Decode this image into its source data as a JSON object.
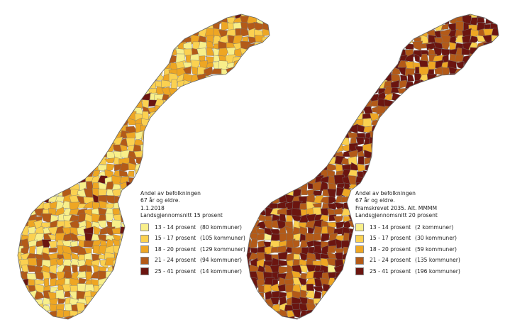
{
  "maps": [
    {
      "title_lines": [
        "Andel av befolkningen",
        "67 år og eldre.",
        "1.1.2018",
        "Landsgjennomsnitt 15 prosent"
      ],
      "classes": [
        {
          "label": "13 - 14 prosent",
          "count": "(80 kommuner)",
          "color": "#f8ef8a"
        },
        {
          "label": "15 - 17 prosent",
          "count": "(105 kommuner)",
          "color": "#fbd150"
        },
        {
          "label": "18 - 20 prosent",
          "count": "(129 kommuner)",
          "color": "#eea623"
        },
        {
          "label": "21 - 24 prosent",
          "count": "(94 kommuner)",
          "color": "#b35a18"
        },
        {
          "label": "25 - 41 prosent",
          "count": "(14 kommuner)",
          "color": "#6b1510"
        }
      ]
    },
    {
      "title_lines": [
        "Andel av befolkningen",
        "67 år og eldre.",
        "Framskrevet 2035. Alt. MMMM",
        "Landsgjennomsnitt 20 prosent"
      ],
      "classes": [
        {
          "label": "13 - 14 prosent",
          "count": "(2 kommuner)",
          "color": "#f8ef8a"
        },
        {
          "label": "15 - 17 prosent",
          "count": "(30 kommuner)",
          "color": "#fbd150"
        },
        {
          "label": "18 - 20 prosent",
          "count": "(59 kommuner)",
          "color": "#eea623"
        },
        {
          "label": "21 - 24 prosent",
          "count": "(135 kommuner)",
          "color": "#b35a18"
        },
        {
          "label": "25 - 41 prosent",
          "count": "(196 kommuner)",
          "color": "#6b1510"
        }
      ]
    }
  ]
}
